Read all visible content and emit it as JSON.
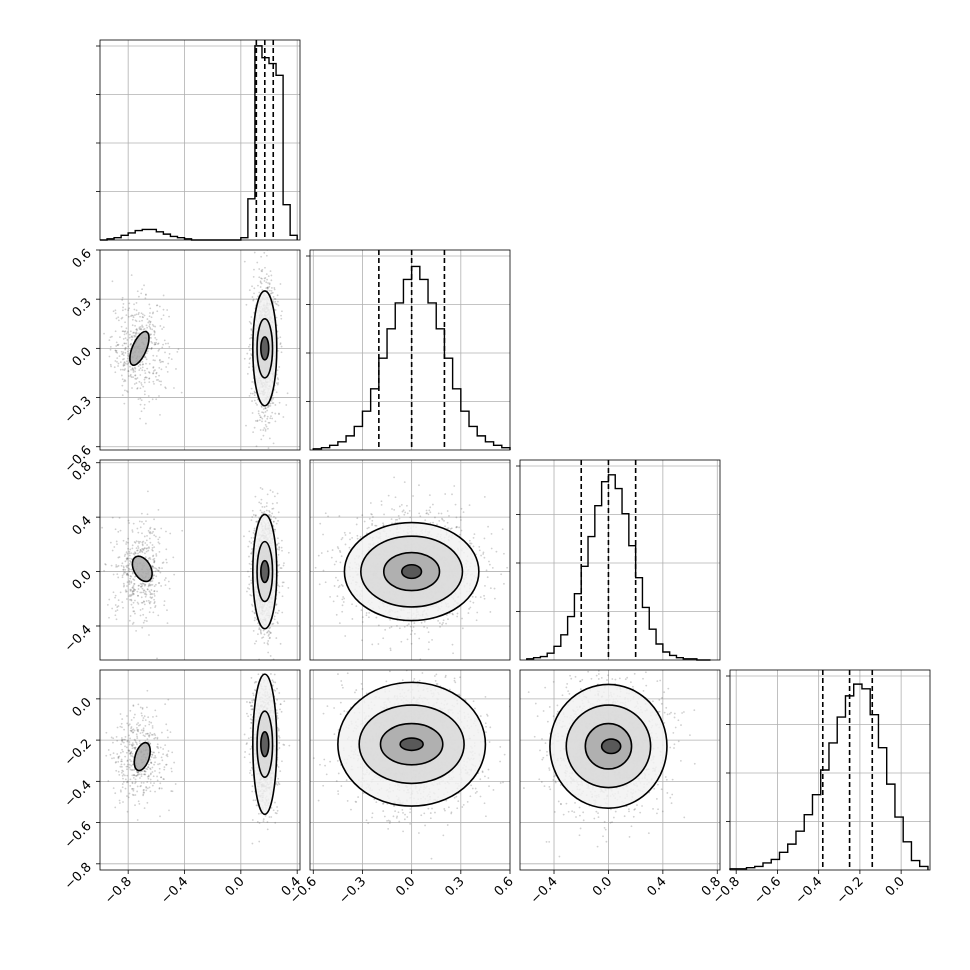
{
  "chart_data": {
    "type": "corner",
    "parameters": 4,
    "grid": true,
    "axis_ranges": [
      [
        -1.0,
        0.42
      ],
      [
        -0.62,
        0.6
      ],
      [
        -0.65,
        0.82
      ],
      [
        -0.83,
        0.14
      ]
    ],
    "tick_labels": [
      [
        "−0.8",
        "−0.4",
        "0.0",
        "0.4"
      ],
      [
        "−0.6",
        "−0.3",
        "0.0",
        "0.3",
        "0.6"
      ],
      [
        "−0.4",
        "0.0",
        "0.4",
        "0.8"
      ],
      [
        "−0.8",
        "−0.6",
        "−0.4",
        "−0.2",
        "0.0"
      ]
    ],
    "tick_values": [
      [
        -0.8,
        -0.4,
        0.0,
        0.4
      ],
      [
        -0.6,
        -0.3,
        0.0,
        0.3,
        0.6
      ],
      [
        -0.4,
        0.0,
        0.4,
        0.8
      ],
      [
        -0.8,
        -0.6,
        -0.4,
        -0.2,
        0.0
      ]
    ],
    "quantiles": [
      [
        0.11,
        0.17,
        0.23
      ],
      [
        -0.2,
        0.0,
        0.2
      ],
      [
        -0.2,
        0.0,
        0.2
      ],
      [
        -0.38,
        -0.25,
        -0.14
      ]
    ],
    "histograms": [
      {
        "bin_edges": [
          -1.0,
          -0.95,
          -0.9,
          -0.85,
          -0.8,
          -0.75,
          -0.7,
          -0.65,
          -0.6,
          -0.55,
          -0.5,
          -0.45,
          -0.4,
          -0.35,
          -0.3,
          -0.25,
          -0.2,
          -0.15,
          -0.1,
          -0.05,
          0.0,
          0.05,
          0.1,
          0.15,
          0.2,
          0.25,
          0.3,
          0.35,
          0.4
        ],
        "counts": [
          0,
          1,
          2,
          4,
          6,
          8,
          9,
          9,
          7,
          5,
          3,
          2,
          1,
          0,
          0,
          0,
          0,
          0,
          0,
          0,
          2,
          35,
          165,
          155,
          150,
          140,
          30,
          4
        ],
        "ylim": [
          0,
          170
        ]
      },
      {
        "bin_edges": [
          -0.6,
          -0.55,
          -0.5,
          -0.45,
          -0.4,
          -0.35,
          -0.3,
          -0.25,
          -0.2,
          -0.15,
          -0.1,
          -0.05,
          0.0,
          0.05,
          0.1,
          0.15,
          0.2,
          0.25,
          0.3,
          0.35,
          0.4,
          0.45,
          0.5,
          0.55,
          0.6
        ],
        "counts": [
          1,
          2,
          4,
          7,
          12,
          20,
          33,
          52,
          78,
          103,
          125,
          145,
          156,
          145,
          125,
          103,
          78,
          52,
          33,
          20,
          12,
          7,
          4,
          2
        ],
        "ylim": [
          0,
          170
        ]
      },
      {
        "bin_edges": [
          -0.6,
          -0.55,
          -0.5,
          -0.45,
          -0.4,
          -0.35,
          -0.3,
          -0.25,
          -0.2,
          -0.15,
          -0.1,
          -0.05,
          0.0,
          0.05,
          0.1,
          0.15,
          0.2,
          0.25,
          0.3,
          0.35,
          0.4,
          0.45,
          0.5,
          0.55,
          0.6,
          0.65,
          0.7,
          0.75
        ],
        "counts": [
          1,
          2,
          3,
          6,
          12,
          22,
          38,
          58,
          82,
          108,
          135,
          156,
          162,
          150,
          128,
          100,
          72,
          46,
          27,
          14,
          7,
          4,
          2,
          1,
          1,
          0,
          0
        ],
        "ylim": [
          0,
          175
        ]
      },
      {
        "bin_edges": [
          -0.83,
          -0.79,
          -0.75,
          -0.71,
          -0.67,
          -0.63,
          -0.59,
          -0.55,
          -0.51,
          -0.47,
          -0.43,
          -0.39,
          -0.35,
          -0.31,
          -0.27,
          -0.23,
          -0.19,
          -0.15,
          -0.11,
          -0.07,
          -0.03,
          0.01,
          0.05,
          0.09,
          0.13
        ],
        "counts": [
          1,
          1,
          2,
          3,
          6,
          9,
          15,
          22,
          33,
          47,
          64,
          85,
          108,
          130,
          148,
          158,
          154,
          132,
          104,
          73,
          45,
          24,
          8,
          3
        ],
        "ylim": [
          0,
          170
        ]
      }
    ],
    "panels_2d": [
      {
        "row": 1,
        "col": 0,
        "clusters": [
          {
            "mean": [
              -0.72,
              0.0
            ],
            "sd": [
              0.1,
              0.15
            ],
            "n": 450
          },
          {
            "mean": [
              0.17,
              0.0
            ],
            "sd": [
              0.045,
              0.2
            ],
            "n": 1400
          }
        ],
        "contours": [
          {
            "center": [
              -0.72,
              0.0
            ],
            "radius": [
              0.05,
              0.11
            ],
            "tilt": 0.4
          },
          {
            "center": [
              0.17,
              0.0
            ],
            "radius": [
              0.028,
              0.07
            ],
            "tilt": 0
          },
          {
            "center": [
              0.17,
              0.0
            ],
            "radius": [
              0.055,
              0.18
            ],
            "tilt": 0
          },
          {
            "center": [
              0.17,
              0.0
            ],
            "radius": [
              0.085,
              0.35
            ],
            "tilt": 0
          }
        ]
      },
      {
        "row": 2,
        "col": 0,
        "clusters": [
          {
            "mean": [
              -0.72,
              0.0
            ],
            "sd": [
              0.1,
              0.18
            ],
            "n": 450
          },
          {
            "mean": [
              0.17,
              0.0
            ],
            "sd": [
              0.045,
              0.22
            ],
            "n": 1400
          }
        ],
        "contours": [
          {
            "center": [
              -0.7,
              0.02
            ],
            "radius": [
              0.06,
              0.1
            ],
            "tilt": -0.5
          },
          {
            "center": [
              0.17,
              0.0
            ],
            "radius": [
              0.028,
              0.08
            ],
            "tilt": 0
          },
          {
            "center": [
              0.17,
              0.0
            ],
            "radius": [
              0.055,
              0.22
            ],
            "tilt": 0
          },
          {
            "center": [
              0.17,
              0.0
            ],
            "radius": [
              0.085,
              0.42
            ],
            "tilt": 0
          }
        ]
      },
      {
        "row": 2,
        "col": 1,
        "clusters": [
          {
            "mean": [
              0.0,
              0.0
            ],
            "sd": [
              0.2,
              0.2
            ],
            "n": 1800
          }
        ],
        "contours": [
          {
            "center": [
              0.0,
              0.0
            ],
            "radius": [
              0.06,
              0.05
            ],
            "tilt": 0
          },
          {
            "center": [
              0.0,
              0.0
            ],
            "radius": [
              0.17,
              0.14
            ],
            "tilt": 0
          },
          {
            "center": [
              0.0,
              0.0
            ],
            "radius": [
              0.31,
              0.26
            ],
            "tilt": 0
          },
          {
            "center": [
              0.0,
              0.0
            ],
            "radius": [
              0.41,
              0.36
            ],
            "tilt": 0
          }
        ]
      },
      {
        "row": 3,
        "col": 0,
        "clusters": [
          {
            "mean": [
              -0.72,
              -0.28
            ],
            "sd": [
              0.1,
              0.12
            ],
            "n": 450
          },
          {
            "mean": [
              0.17,
              -0.23
            ],
            "sd": [
              0.045,
              0.15
            ],
            "n": 1400
          }
        ],
        "contours": [
          {
            "center": [
              -0.7,
              -0.28
            ],
            "radius": [
              0.05,
              0.07
            ],
            "tilt": 0.3
          },
          {
            "center": [
              0.17,
              -0.22
            ],
            "radius": [
              0.028,
              0.06
            ],
            "tilt": 0
          },
          {
            "center": [
              0.17,
              -0.22
            ],
            "radius": [
              0.055,
              0.16
            ],
            "tilt": 0
          },
          {
            "center": [
              0.17,
              -0.22
            ],
            "radius": [
              0.085,
              0.34
            ],
            "tilt": 0
          }
        ]
      },
      {
        "row": 3,
        "col": 1,
        "clusters": [
          {
            "mean": [
              0.0,
              -0.23
            ],
            "sd": [
              0.2,
              0.15
            ],
            "n": 1800
          }
        ],
        "contours": [
          {
            "center": [
              0.0,
              -0.22
            ],
            "radius": [
              0.07,
              0.03
            ],
            "tilt": 0
          },
          {
            "center": [
              0.0,
              -0.22
            ],
            "radius": [
              0.19,
              0.1
            ],
            "tilt": 0
          },
          {
            "center": [
              0.0,
              -0.22
            ],
            "radius": [
              0.32,
              0.19
            ],
            "tilt": 0
          },
          {
            "center": [
              0.0,
              -0.22
            ],
            "radius": [
              0.45,
              0.3
            ],
            "tilt": 0
          }
        ]
      },
      {
        "row": 3,
        "col": 2,
        "clusters": [
          {
            "mean": [
              0.0,
              -0.23
            ],
            "sd": [
              0.2,
              0.15
            ],
            "n": 1800
          }
        ],
        "contours": [
          {
            "center": [
              0.02,
              -0.23
            ],
            "radius": [
              0.07,
              0.035
            ],
            "tilt": 0
          },
          {
            "center": [
              0.0,
              -0.23
            ],
            "radius": [
              0.17,
              0.11
            ],
            "tilt": 0
          },
          {
            "center": [
              0.0,
              -0.23
            ],
            "radius": [
              0.31,
              0.2
            ],
            "tilt": 0
          },
          {
            "center": [
              0.0,
              -0.23
            ],
            "radius": [
              0.43,
              0.3
            ],
            "tilt": 0
          }
        ]
      }
    ]
  }
}
